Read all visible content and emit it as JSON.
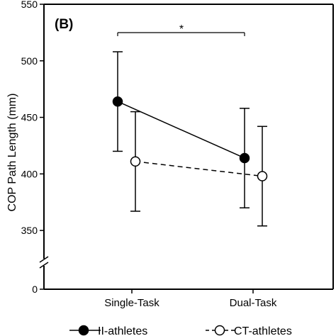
{
  "chart_data": {
    "type": "line",
    "panel_label": "(B)",
    "categories": [
      "Single-Task",
      "Dual-Task"
    ],
    "ylabel": "COP Path Length (mm)",
    "xlabel": "",
    "ylim": [
      0,
      550
    ],
    "y_axis_break": [
      0,
      325
    ],
    "yticks": [
      0,
      350,
      400,
      450,
      500,
      550
    ],
    "grid": false,
    "legend_position": "bottom",
    "series": [
      {
        "name": "II-athletes",
        "marker": "filled-circle",
        "line": "solid",
        "color": "#000000",
        "values": [
          464,
          414
        ],
        "error": [
          44,
          44
        ]
      },
      {
        "name": "CT-athletes",
        "marker": "open-circle",
        "line": "dashed",
        "color": "#000000",
        "values": [
          411,
          398
        ],
        "error": [
          44,
          44
        ]
      }
    ],
    "annotation": {
      "text": "*",
      "between": [
        "Single-Task",
        "Dual-Task"
      ],
      "series": "II-athletes"
    }
  }
}
